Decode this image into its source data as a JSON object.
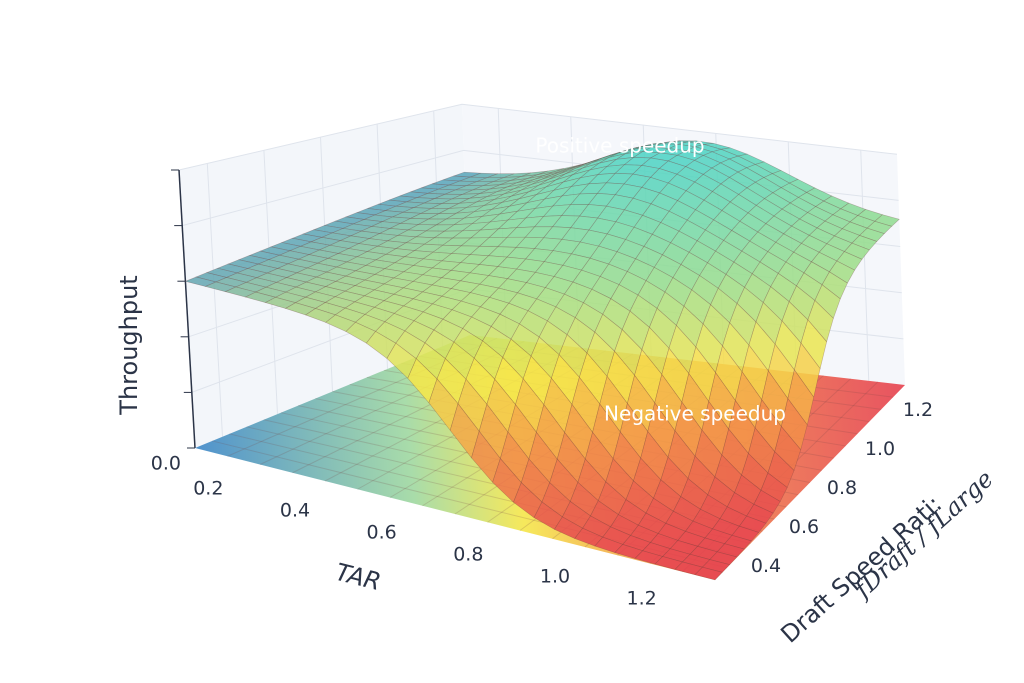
{
  "chart_data": {
    "type": "surface",
    "x_label": "TAR",
    "y_label": "Draft Speed Rati:",
    "y_label_formula": "fDraft / fLarge",
    "z_label": "Throughput",
    "xlim": [
      0.1,
      1.3
    ],
    "xticks": [
      0.2,
      0.4,
      0.6,
      0.8,
      {
        "value": 1,
        "label": "1.0"
      },
      1.2
    ],
    "ylim": [
      0.3,
      1.3
    ],
    "yticks": [
      0.4,
      0.6,
      0.8,
      {
        "value": 1,
        "label": "1.0"
      },
      1.2
    ],
    "zlim": [
      0,
      1
    ],
    "zticks": [
      {
        "value": 0,
        "label": "0.0"
      }
    ],
    "annotations": [
      "Positive speedup",
      "Negative speedup"
    ],
    "grid": true
  }
}
